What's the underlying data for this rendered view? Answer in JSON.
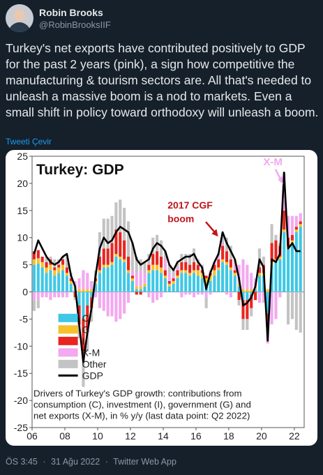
{
  "tweet": {
    "display_name": "Robin Brooks",
    "handle": "@RobinBrooksIIF",
    "text": "Turkey's net exports have contributed positively to GDP for the past 2 years (pink), a sign how competitive the manufacturing & tourism sectors are. All that's needed to unleash a massive boom is a nod to markets. Even a small shift in policy toward orthodoxy will unleash a boom.",
    "translate_label": "Tweeti Çevir",
    "time": "ÖS 3:45",
    "separator": "·",
    "date": "31 Ağu 2022",
    "source": "Twitter Web App"
  },
  "colors": {
    "background": "#15202b",
    "link": "#1d9bf0",
    "muted": "#8b98a5",
    "C": "#3fc8e6",
    "G": "#f7c12b",
    "I": "#e8251f",
    "XM": "#f3a8f0",
    "Other": "#c3c3c3",
    "GDP": "#000000",
    "annotation": "#c0161b"
  },
  "chart_data": {
    "type": "bar",
    "title": "Turkey: GDP",
    "ylim": [
      -25,
      25
    ],
    "yticks": [
      25,
      20,
      15,
      10,
      5,
      0,
      -5,
      -10,
      -15,
      -20,
      -25
    ],
    "xlim": [
      2006.0,
      2022.6
    ],
    "xticks": [
      "06",
      "08",
      "10",
      "12",
      "14",
      "16",
      "18",
      "20",
      "22"
    ],
    "legend": {
      "position": "lower-left",
      "entries": [
        {
          "key": "C",
          "label": "C"
        },
        {
          "key": "G",
          "label": "G"
        },
        {
          "key": "I",
          "label": "I"
        },
        {
          "key": "XM",
          "label": "X-M"
        },
        {
          "key": "Other",
          "label": "Other"
        },
        {
          "key": "GDP",
          "label": "GDP"
        }
      ]
    },
    "annotations": [
      {
        "text": "X-M",
        "at": [
          2020.7,
          24
        ]
      },
      {
        "text": "2017 CGF",
        "at": [
          2015.8,
          16
        ]
      },
      {
        "text": "boom",
        "at": [
          2015.8,
          13.5
        ]
      }
    ],
    "caption": [
      "Drivers of Turkey's GDP growth: contributions from",
      "consumption (C), investment (I), government (G) and",
      "net exports (X-M), in % y/y (last data point: Q2 2022)"
    ],
    "quarters": [
      [
        2006.0,
        5.0,
        1.0,
        1.5,
        -1.5,
        -2.0,
        7.0
      ],
      [
        2006.25,
        5.2,
        1.0,
        1.5,
        -1.5,
        -1.5,
        9.5
      ],
      [
        2006.5,
        4.5,
        1.0,
        1.0,
        -1.0,
        0.0,
        8.0
      ],
      [
        2006.75,
        3.5,
        1.0,
        1.0,
        -1.0,
        1.0,
        6.5
      ],
      [
        2007.0,
        4.0,
        1.0,
        1.0,
        -1.5,
        0.5,
        5.5
      ],
      [
        2007.25,
        3.0,
        1.0,
        0.5,
        -1.0,
        1.5,
        5.0
      ],
      [
        2007.5,
        3.5,
        1.0,
        0.5,
        -1.0,
        1.0,
        5.5
      ],
      [
        2007.75,
        4.0,
        1.0,
        1.0,
        -1.0,
        0.5,
        6.5
      ],
      [
        2008.0,
        3.0,
        0.5,
        1.0,
        -1.0,
        2.0,
        7.0
      ],
      [
        2008.25,
        1.5,
        0.5,
        0.5,
        0.5,
        0.5,
        3.0
      ],
      [
        2008.5,
        0.5,
        0.5,
        -1.0,
        1.0,
        -0.5,
        1.0
      ],
      [
        2008.75,
        -2.5,
        0.5,
        -3.5,
        2.0,
        -2.5,
        -6.0
      ],
      [
        2009.0,
        -5.0,
        0.5,
        -6.5,
        3.5,
        -6.0,
        -13.0
      ],
      [
        2009.25,
        -2.5,
        0.5,
        -4.5,
        3.0,
        -4.0,
        -7.5
      ],
      [
        2009.5,
        -1.0,
        0.5,
        -2.0,
        1.5,
        -2.5,
        -3.0
      ],
      [
        2009.75,
        1.5,
        0.5,
        0.5,
        -1.0,
        1.5,
        3.0
      ],
      [
        2010.0,
        3.5,
        0.5,
        2.5,
        -3.0,
        4.5,
        8.0
      ],
      [
        2010.25,
        4.5,
        0.5,
        3.0,
        -3.5,
        5.5,
        10.0
      ],
      [
        2010.5,
        4.5,
        0.5,
        3.0,
        -4.5,
        5.5,
        9.0
      ],
      [
        2010.75,
        5.0,
        0.5,
        3.5,
        -4.5,
        5.0,
        9.5
      ],
      [
        2011.0,
        6.5,
        0.5,
        4.5,
        -5.5,
        5.0,
        11.0
      ],
      [
        2011.25,
        6.0,
        0.5,
        4.5,
        -5.0,
        6.0,
        12.0
      ],
      [
        2011.5,
        5.5,
        0.5,
        3.5,
        -4.0,
        6.0,
        11.5
      ],
      [
        2011.75,
        3.5,
        0.5,
        2.5,
        -2.0,
        6.5,
        11.0
      ],
      [
        2012.0,
        2.0,
        0.5,
        0.5,
        1.0,
        5.0,
        9.0
      ],
      [
        2012.25,
        0.5,
        0.5,
        -0.5,
        2.5,
        3.0,
        6.0
      ],
      [
        2012.5,
        0.5,
        0.5,
        -0.5,
        3.0,
        2.0,
        5.0
      ],
      [
        2012.75,
        1.0,
        0.5,
        0.0,
        2.0,
        2.0,
        5.5
      ],
      [
        2013.0,
        3.5,
        0.5,
        1.0,
        -1.0,
        2.0,
        6.0
      ],
      [
        2013.25,
        4.0,
        1.0,
        2.0,
        -2.0,
        3.0,
        8.0
      ],
      [
        2013.5,
        4.0,
        1.0,
        2.5,
        -1.5,
        3.0,
        9.0
      ],
      [
        2013.75,
        3.5,
        1.0,
        2.0,
        -1.0,
        3.0,
        8.5
      ],
      [
        2014.0,
        2.5,
        0.5,
        1.0,
        2.0,
        1.5,
        7.5
      ],
      [
        2014.25,
        1.0,
        0.5,
        0.5,
        1.5,
        1.5,
        5.0
      ],
      [
        2014.5,
        1.5,
        0.5,
        0.5,
        0.5,
        1.0,
        4.0
      ],
      [
        2014.75,
        2.5,
        0.5,
        1.0,
        0.5,
        1.0,
        5.5
      ],
      [
        2015.0,
        3.5,
        0.5,
        1.5,
        -1.0,
        1.5,
        6.0
      ],
      [
        2015.25,
        3.5,
        0.5,
        1.5,
        -0.5,
        1.5,
        6.5
      ],
      [
        2015.5,
        3.0,
        0.5,
        1.5,
        -0.5,
        2.0,
        6.5
      ],
      [
        2015.75,
        3.5,
        0.5,
        1.5,
        -1.0,
        2.5,
        7.0
      ],
      [
        2016.0,
        3.0,
        1.0,
        1.0,
        -0.5,
        1.0,
        5.5
      ],
      [
        2016.25,
        2.5,
        1.0,
        0.5,
        -0.5,
        1.0,
        4.5
      ],
      [
        2016.5,
        1.5,
        1.0,
        0.5,
        -1.0,
        -2.0,
        0.5
      ],
      [
        2016.75,
        2.0,
        1.0,
        0.5,
        -0.5,
        0.5,
        3.5
      ],
      [
        2017.0,
        3.0,
        1.0,
        1.0,
        0.5,
        0.0,
        5.5
      ],
      [
        2017.25,
        4.0,
        0.5,
        1.5,
        0.5,
        0.5,
        7.0
      ],
      [
        2017.5,
        5.5,
        0.5,
        2.5,
        0.5,
        2.0,
        11.0
      ],
      [
        2017.75,
        5.0,
        0.5,
        2.0,
        -0.5,
        2.5,
        9.0
      ],
      [
        2018.0,
        4.0,
        0.5,
        1.5,
        -1.0,
        2.5,
        7.5
      ],
      [
        2018.25,
        3.0,
        0.5,
        0.5,
        1.0,
        1.0,
        6.0
      ],
      [
        2018.5,
        1.0,
        0.5,
        -1.5,
        3.5,
        -1.0,
        2.5
      ],
      [
        2018.75,
        -1.5,
        0.5,
        -3.5,
        5.5,
        -2.0,
        -2.5
      ],
      [
        2019.0,
        -1.5,
        0.5,
        -3.5,
        4.5,
        -2.0,
        -2.0
      ],
      [
        2019.25,
        -0.5,
        0.5,
        -2.5,
        3.0,
        -1.5,
        -1.0
      ],
      [
        2019.5,
        0.5,
        0.5,
        -1.5,
        1.5,
        0.0,
        1.0
      ],
      [
        2019.75,
        3.0,
        0.5,
        1.0,
        -2.0,
        3.5,
        6.0
      ],
      [
        2020.0,
        3.0,
        0.5,
        1.5,
        -2.0,
        1.5,
        4.5
      ],
      [
        2020.25,
        -4.0,
        0.5,
        -1.5,
        -4.0,
        0.0,
        -9.0
      ],
      [
        2020.5,
        5.0,
        0.5,
        3.5,
        -6.0,
        3.5,
        6.0
      ],
      [
        2020.75,
        5.5,
        0.5,
        3.5,
        -5.0,
        1.0,
        5.5
      ],
      [
        2021.0,
        6.0,
        0.5,
        2.0,
        -1.0,
        0.5,
        7.0
      ],
      [
        2021.25,
        11.0,
        0.5,
        3.5,
        6.5,
        0.5,
        22.0
      ],
      [
        2021.5,
        8.0,
        0.5,
        1.5,
        4.0,
        -6.0,
        8.0
      ],
      [
        2021.75,
        9.0,
        0.5,
        1.0,
        3.5,
        -5.0,
        9.0
      ],
      [
        2022.0,
        11.0,
        0.5,
        0.5,
        2.0,
        -7.0,
        7.5
      ],
      [
        2022.25,
        12.0,
        0.5,
        0.5,
        1.5,
        -7.5,
        7.5
      ]
    ]
  }
}
